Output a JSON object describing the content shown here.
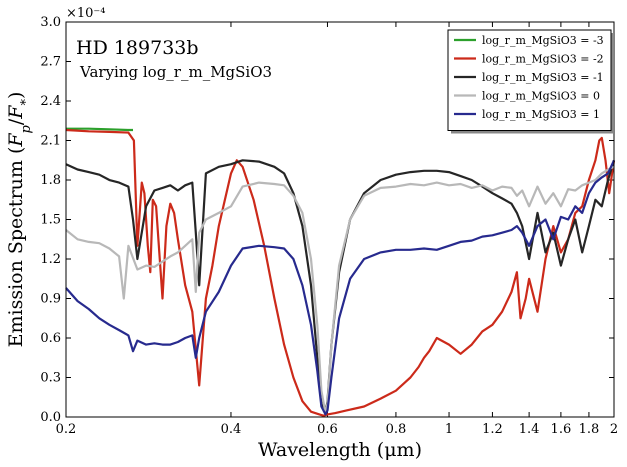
{
  "chart_data": {
    "type": "line",
    "title": "HD 189733b",
    "subtitle": "Varying log_r_m_MgSiO3",
    "xlabel": "Wavelength (μm)",
    "ylabel": "Emission Spectrum (F_p/F_*)",
    "y_multiplier_label": "×10⁻⁴",
    "x_scale": "log",
    "xlim": [
      0.2,
      2.0
    ],
    "ylim": [
      0.0,
      3.0
    ],
    "x_ticks": [
      0.2,
      0.4,
      0.6,
      0.8,
      1,
      1.2,
      1.4,
      1.6,
      1.8,
      2
    ],
    "x_tick_labels": [
      "0.2",
      "0.4",
      "0.6",
      "0.8",
      "1",
      "1.2",
      "1.4",
      "1.6",
      "1.8",
      "2"
    ],
    "y_ticks": [
      0.0,
      0.3,
      0.6,
      0.9,
      1.2,
      1.5,
      1.8,
      2.1,
      2.4,
      2.7,
      3.0
    ],
    "y_tick_labels": [
      "0.0",
      "0.3",
      "0.6",
      "0.9",
      "1.2",
      "1.5",
      "1.8",
      "2.1",
      "2.4",
      "2.7",
      "3.0"
    ],
    "legend_position": "top-right",
    "series": [
      {
        "name": "log_r_m_MgSiO3 = -3",
        "color": "#2ca02c",
        "x": [
          0.2,
          0.22,
          0.24,
          0.26,
          0.265
        ],
        "y": [
          2.19,
          2.19,
          2.185,
          2.18,
          2.18
        ]
      },
      {
        "name": "log_r_m_MgSiO3 = -2",
        "color": "#cc2a1a",
        "x": [
          0.2,
          0.22,
          0.24,
          0.26,
          0.266,
          0.27,
          0.275,
          0.278,
          0.282,
          0.285,
          0.288,
          0.292,
          0.3,
          0.305,
          0.31,
          0.315,
          0.32,
          0.33,
          0.34,
          0.35,
          0.36,
          0.37,
          0.38,
          0.39,
          0.4,
          0.41,
          0.42,
          0.44,
          0.46,
          0.48,
          0.5,
          0.52,
          0.54,
          0.56,
          0.58,
          0.59,
          0.6,
          0.62,
          0.65,
          0.7,
          0.75,
          0.8,
          0.85,
          0.88,
          0.9,
          0.92,
          0.95,
          1.0,
          1.05,
          1.1,
          1.15,
          1.2,
          1.25,
          1.3,
          1.33,
          1.35,
          1.38,
          1.4,
          1.45,
          1.5,
          1.55,
          1.6,
          1.65,
          1.7,
          1.75,
          1.8,
          1.85,
          1.88,
          1.9,
          1.93,
          1.96,
          2.0
        ],
        "y": [
          2.18,
          2.17,
          2.165,
          2.16,
          2.1,
          1.3,
          1.78,
          1.7,
          1.3,
          1.1,
          1.65,
          1.6,
          0.9,
          1.45,
          1.62,
          1.55,
          1.35,
          1.0,
          0.8,
          0.24,
          0.9,
          1.15,
          1.45,
          1.65,
          1.85,
          1.95,
          1.9,
          1.65,
          1.3,
          0.9,
          0.55,
          0.3,
          0.12,
          0.04,
          0.02,
          0.01,
          0.02,
          0.03,
          0.05,
          0.08,
          0.14,
          0.2,
          0.3,
          0.38,
          0.45,
          0.5,
          0.6,
          0.55,
          0.48,
          0.55,
          0.65,
          0.7,
          0.8,
          0.95,
          1.1,
          0.75,
          0.9,
          1.05,
          0.8,
          1.2,
          1.45,
          1.25,
          1.35,
          1.55,
          1.6,
          1.8,
          1.95,
          2.1,
          2.12,
          1.95,
          1.7,
          1.95
        ]
      },
      {
        "name": "log_r_m_MgSiO3 = -1",
        "color": "#262626",
        "x": [
          0.2,
          0.21,
          0.22,
          0.23,
          0.24,
          0.25,
          0.26,
          0.265,
          0.27,
          0.28,
          0.29,
          0.3,
          0.31,
          0.32,
          0.33,
          0.34,
          0.345,
          0.35,
          0.36,
          0.38,
          0.4,
          0.42,
          0.45,
          0.48,
          0.5,
          0.52,
          0.54,
          0.56,
          0.575,
          0.585,
          0.595,
          0.6,
          0.61,
          0.63,
          0.66,
          0.7,
          0.75,
          0.8,
          0.85,
          0.9,
          0.95,
          1.0,
          1.05,
          1.1,
          1.15,
          1.2,
          1.25,
          1.3,
          1.33,
          1.36,
          1.4,
          1.45,
          1.5,
          1.55,
          1.6,
          1.65,
          1.7,
          1.75,
          1.8,
          1.85,
          1.9,
          1.95,
          2.0
        ],
        "y": [
          1.92,
          1.88,
          1.86,
          1.84,
          1.8,
          1.78,
          1.75,
          1.5,
          1.2,
          1.6,
          1.72,
          1.74,
          1.76,
          1.72,
          1.76,
          1.78,
          1.4,
          1.0,
          1.85,
          1.9,
          1.92,
          1.95,
          1.94,
          1.9,
          1.85,
          1.7,
          1.45,
          1.0,
          0.45,
          0.1,
          0.03,
          0.12,
          0.55,
          1.1,
          1.5,
          1.7,
          1.8,
          1.84,
          1.86,
          1.87,
          1.87,
          1.86,
          1.83,
          1.8,
          1.75,
          1.7,
          1.66,
          1.62,
          1.55,
          1.45,
          1.2,
          1.55,
          1.25,
          1.4,
          1.15,
          1.35,
          1.5,
          1.25,
          1.45,
          1.65,
          1.6,
          1.8,
          1.95
        ]
      },
      {
        "name": "log_r_m_MgSiO3 = 0",
        "color": "#b8b8b8",
        "x": [
          0.2,
          0.21,
          0.22,
          0.23,
          0.24,
          0.25,
          0.255,
          0.26,
          0.27,
          0.28,
          0.29,
          0.3,
          0.31,
          0.32,
          0.33,
          0.34,
          0.345,
          0.35,
          0.36,
          0.38,
          0.4,
          0.42,
          0.45,
          0.48,
          0.5,
          0.52,
          0.54,
          0.56,
          0.575,
          0.585,
          0.595,
          0.6,
          0.61,
          0.63,
          0.66,
          0.7,
          0.75,
          0.8,
          0.85,
          0.9,
          0.95,
          1.0,
          1.05,
          1.1,
          1.15,
          1.2,
          1.25,
          1.3,
          1.33,
          1.36,
          1.4,
          1.45,
          1.5,
          1.55,
          1.6,
          1.65,
          1.7,
          1.75,
          1.8,
          1.85,
          1.9,
          1.95,
          2.0
        ],
        "y": [
          1.42,
          1.35,
          1.33,
          1.32,
          1.28,
          1.22,
          0.9,
          1.3,
          1.12,
          1.15,
          1.14,
          1.18,
          1.22,
          1.25,
          1.3,
          1.35,
          0.95,
          1.4,
          1.5,
          1.55,
          1.6,
          1.75,
          1.78,
          1.77,
          1.76,
          1.68,
          1.55,
          1.2,
          0.7,
          0.2,
          0.03,
          0.1,
          0.55,
          1.15,
          1.5,
          1.68,
          1.74,
          1.75,
          1.77,
          1.76,
          1.78,
          1.76,
          1.77,
          1.74,
          1.76,
          1.72,
          1.75,
          1.74,
          1.68,
          1.72,
          1.6,
          1.75,
          1.62,
          1.7,
          1.6,
          1.73,
          1.72,
          1.76,
          1.78,
          1.8,
          1.85,
          1.88,
          1.9
        ]
      },
      {
        "name": "log_r_m_MgSiO3 = 1",
        "color": "#272a8e",
        "x": [
          0.2,
          0.21,
          0.22,
          0.23,
          0.24,
          0.25,
          0.26,
          0.265,
          0.27,
          0.28,
          0.29,
          0.3,
          0.31,
          0.32,
          0.33,
          0.34,
          0.345,
          0.35,
          0.36,
          0.38,
          0.4,
          0.42,
          0.45,
          0.48,
          0.5,
          0.52,
          0.54,
          0.56,
          0.575,
          0.585,
          0.595,
          0.6,
          0.61,
          0.63,
          0.66,
          0.7,
          0.75,
          0.8,
          0.85,
          0.9,
          0.95,
          1.0,
          1.05,
          1.1,
          1.15,
          1.2,
          1.25,
          1.3,
          1.33,
          1.36,
          1.4,
          1.45,
          1.5,
          1.55,
          1.6,
          1.65,
          1.7,
          1.75,
          1.8,
          1.85,
          1.9,
          1.95,
          2.0
        ],
        "y": [
          0.98,
          0.88,
          0.82,
          0.75,
          0.7,
          0.66,
          0.62,
          0.5,
          0.58,
          0.55,
          0.56,
          0.55,
          0.55,
          0.57,
          0.6,
          0.62,
          0.45,
          0.6,
          0.8,
          0.95,
          1.15,
          1.28,
          1.3,
          1.29,
          1.28,
          1.2,
          1.0,
          0.7,
          0.35,
          0.08,
          0.02,
          0.05,
          0.3,
          0.75,
          1.05,
          1.2,
          1.25,
          1.27,
          1.27,
          1.28,
          1.27,
          1.3,
          1.33,
          1.34,
          1.37,
          1.38,
          1.4,
          1.42,
          1.45,
          1.4,
          1.3,
          1.45,
          1.5,
          1.35,
          1.52,
          1.5,
          1.6,
          1.55,
          1.7,
          1.78,
          1.82,
          1.85,
          1.95
        ]
      }
    ]
  }
}
